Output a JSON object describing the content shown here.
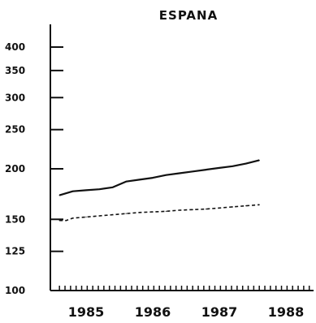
{
  "chart_data": {
    "type": "line",
    "title": "ESPANA",
    "xlabel": "",
    "ylabel": "",
    "y_scale": "log",
    "ylim": [
      100,
      400
    ],
    "xlim": [
      1984.6,
      1988.6
    ],
    "y_ticks": [
      100,
      125,
      150,
      200,
      250,
      300,
      350,
      400
    ],
    "y_tick_labels": [
      "100",
      "125",
      "150",
      "200",
      "250",
      "300",
      "350",
      "400"
    ],
    "x_ticks": [
      1985,
      1986,
      1987,
      1988
    ],
    "x_tick_labels": [
      "1985",
      "1986",
      "1987",
      "1988"
    ],
    "grid": false,
    "legend": "none",
    "series": [
      {
        "style": "solid",
        "color": "#111111",
        "x": [
          1984.6,
          1984.8,
          1985.0,
          1985.2,
          1985.4,
          1985.5,
          1985.6,
          1985.8,
          1986.0,
          1986.2,
          1986.4,
          1986.6,
          1986.8,
          1987.0,
          1987.2,
          1987.4,
          1987.6
        ],
        "values": [
          172,
          176,
          177,
          178,
          180,
          183,
          186,
          188,
          190,
          193,
          195,
          197,
          199,
          201,
          203,
          206,
          210
        ]
      },
      {
        "style": "dashed",
        "color": "#111111",
        "x": [
          1984.6,
          1984.7,
          1984.8,
          1985.0,
          1985.2,
          1985.4,
          1985.6,
          1985.8,
          1986.0,
          1986.2,
          1986.4,
          1986.6,
          1986.8,
          1987.0,
          1987.2,
          1987.4,
          1987.6
        ],
        "values": [
          149,
          149,
          151,
          152,
          153,
          154,
          155,
          156,
          156.5,
          157,
          158,
          158.5,
          159,
          160,
          161,
          162,
          163
        ]
      }
    ]
  }
}
